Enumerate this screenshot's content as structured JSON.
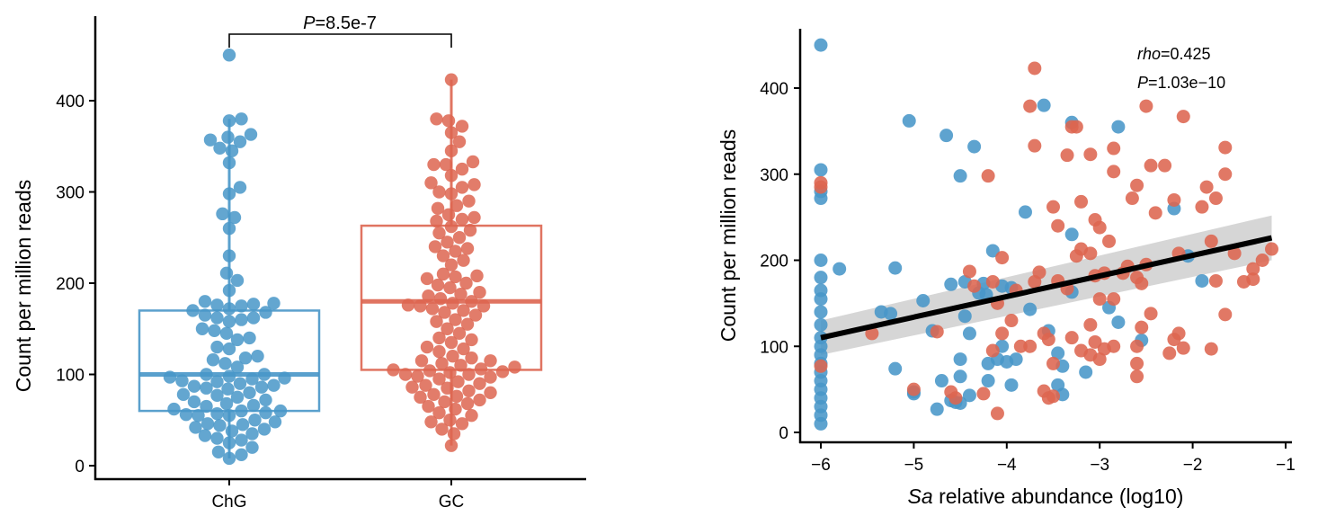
{
  "colors": {
    "ChG": "#4896c8",
    "GC": "#dd6550",
    "fit_line": "#000000",
    "ci_band": "#c8c8c8"
  },
  "chart_data": [
    {
      "type": "box-swarm",
      "ylabel": "Count per million reads",
      "xlabel": "",
      "ylim": [
        0,
        460
      ],
      "yticks": [
        0,
        100,
        200,
        300,
        400
      ],
      "categories": [
        "ChG",
        "GC"
      ],
      "comparison": {
        "p_label": "P",
        "p_value": "=8.5e-7"
      },
      "boxes": [
        {
          "name": "ChG",
          "q1": 60,
          "median": 100,
          "q3": 170,
          "whisker_low": 8,
          "whisker_high": 380
        },
        {
          "name": "GC",
          "q1": 105,
          "median": 180,
          "q3": 263,
          "whisker_low": 22,
          "whisker_high": 423
        }
      ],
      "series": [
        {
          "name": "ChG",
          "values": [
            450,
            380,
            378,
            363,
            360,
            357,
            355,
            348,
            345,
            332,
            305,
            298,
            276,
            272,
            260,
            230,
            211,
            203,
            192,
            180,
            178,
            177,
            176,
            175,
            172,
            170,
            168,
            165,
            162,
            162,
            160,
            158,
            150,
            148,
            145,
            140,
            138,
            130,
            128,
            120,
            118,
            116,
            112,
            108,
            100,
            100,
            98,
            97,
            96,
            95,
            93,
            92,
            90,
            88,
            87,
            86,
            85,
            84,
            80,
            78,
            77,
            75,
            72,
            70,
            68,
            66,
            65,
            62,
            60,
            60,
            58,
            57,
            56,
            55,
            55,
            50,
            48,
            46,
            45,
            44,
            42,
            40,
            38,
            35,
            33,
            30,
            28,
            25,
            20,
            15,
            12,
            8
          ]
        },
        {
          "name": "GC",
          "values": [
            423,
            380,
            378,
            372,
            365,
            355,
            345,
            333,
            330,
            330,
            325,
            318,
            310,
            308,
            305,
            300,
            298,
            290,
            285,
            282,
            275,
            272,
            270,
            268,
            262,
            258,
            255,
            250,
            245,
            240,
            238,
            235,
            230,
            225,
            220,
            210,
            208,
            207,
            205,
            200,
            198,
            195,
            190,
            188,
            186,
            183,
            180,
            178,
            176,
            175,
            175,
            172,
            170,
            168,
            165,
            160,
            158,
            155,
            150,
            145,
            140,
            138,
            135,
            130,
            128,
            125,
            120,
            118,
            115,
            115,
            112,
            110,
            108,
            106,
            105,
            104,
            103,
            102,
            100,
            100,
            98,
            97,
            95,
            92,
            90,
            88,
            86,
            85,
            82,
            80,
            78,
            76,
            75,
            72,
            70,
            68,
            65,
            62,
            58,
            55,
            50,
            48,
            46,
            40,
            35,
            22
          ]
        }
      ]
    },
    {
      "type": "scatter",
      "xlabel_italic": "Sa",
      "xlabel": " relative abundance (log10)",
      "ylabel": "Count per million reads",
      "xlim": [
        -6.2,
        -0.95
      ],
      "ylim": [
        -10,
        460
      ],
      "xticks": [
        -6,
        -5,
        -4,
        -3,
        -2,
        -1
      ],
      "xtick_labels": [
        "−6",
        "−5",
        "−4",
        "−3",
        "−2",
        "−1"
      ],
      "yticks": [
        0,
        100,
        200,
        300,
        400
      ],
      "annotation": {
        "rho_label": "rho",
        "rho_value": "=0.425",
        "p_label": "P",
        "p_value": "=1.03e−10"
      },
      "fit": {
        "x": [
          -6,
          -1.15
        ],
        "y": [
          110,
          226
        ],
        "ci_low": [
          90,
          200
        ],
        "ci_high": [
          130,
          252
        ]
      },
      "series": [
        {
          "name": "ChG",
          "points": [
            [
              -6,
              450
            ],
            [
              -6,
              305
            ],
            [
              -6,
              280
            ],
            [
              -6,
              272
            ],
            [
              -6,
              200
            ],
            [
              -6,
              180
            ],
            [
              -6,
              165
            ],
            [
              -6,
              155
            ],
            [
              -6,
              140
            ],
            [
              -6,
              125
            ],
            [
              -6,
              110
            ],
            [
              -6,
              100
            ],
            [
              -6,
              90
            ],
            [
              -6,
              80
            ],
            [
              -6,
              70
            ],
            [
              -6,
              60
            ],
            [
              -6,
              50
            ],
            [
              -6,
              40
            ],
            [
              -6,
              30
            ],
            [
              -6,
              20
            ],
            [
              -6,
              10
            ],
            [
              -5.05,
              362
            ],
            [
              -4.65,
              345
            ],
            [
              -4.35,
              332
            ],
            [
              -4.5,
              298
            ],
            [
              -3.8,
              256
            ],
            [
              -3.6,
              380
            ],
            [
              -3.3,
              360
            ],
            [
              -2.8,
              355
            ],
            [
              -2.2,
              260
            ],
            [
              -5.8,
              190
            ],
            [
              -5.2,
              191
            ],
            [
              -4.15,
              211
            ],
            [
              -4.05,
              170
            ],
            [
              -3.95,
              168
            ],
            [
              -4.45,
              175
            ],
            [
              -4.6,
              172
            ],
            [
              -4.9,
              153
            ],
            [
              -5.35,
              140
            ],
            [
              -5.25,
              138
            ],
            [
              -4.45,
              135
            ],
            [
              -4.3,
              162
            ],
            [
              -4.22,
              160
            ],
            [
              -3.75,
              143
            ],
            [
              -3.3,
              230
            ],
            [
              -3.3,
              163
            ],
            [
              -2.9,
              145
            ],
            [
              -2.8,
              128
            ],
            [
              -2.55,
              107
            ],
            [
              -3.55,
              118
            ],
            [
              -3.45,
              92
            ],
            [
              -3.4,
              77
            ],
            [
              -3.15,
              70
            ],
            [
              -3.45,
              55
            ],
            [
              -3.4,
              44
            ],
            [
              -3.95,
              55
            ],
            [
              -4.05,
              100
            ],
            [
              -4.1,
              85
            ],
            [
              -4.2,
              80
            ],
            [
              -4.0,
              82
            ],
            [
              -3.9,
              85
            ],
            [
              -4.5,
              85
            ],
            [
              -4.5,
              65
            ],
            [
              -4.7,
              60
            ],
            [
              -4.4,
              43
            ],
            [
              -4.6,
              37
            ],
            [
              -4.55,
              35
            ],
            [
              -4.5,
              34
            ],
            [
              -4.75,
              27
            ],
            [
              -5.2,
              74
            ],
            [
              -5.0,
              45
            ],
            [
              -5.0,
              47
            ],
            [
              -4.2,
              60
            ],
            [
              -4.4,
              115
            ],
            [
              -1.9,
              176
            ],
            [
              -2.05,
              205
            ],
            [
              -4.25,
              173
            ],
            [
              -4.8,
              118
            ]
          ]
        },
        {
          "name": "GC",
          "points": [
            [
              -3.7,
              423
            ],
            [
              -3.75,
              379
            ],
            [
              -3.7,
              333
            ],
            [
              -4.2,
              298
            ],
            [
              -4.05,
              203
            ],
            [
              -4.4,
              187
            ],
            [
              -2.5,
              379
            ],
            [
              -2.1,
              367
            ],
            [
              -3.3,
              355
            ],
            [
              -3.25,
              355
            ],
            [
              -3.35,
              322
            ],
            [
              -3.1,
              323
            ],
            [
              -2.85,
              330
            ],
            [
              -2.85,
              303
            ],
            [
              -1.65,
              331
            ],
            [
              -1.65,
              300
            ],
            [
              -1.85,
              285
            ],
            [
              -1.75,
              272
            ],
            [
              -2.45,
              310
            ],
            [
              -2.3,
              310
            ],
            [
              -2.2,
              270
            ],
            [
              -2.4,
              255
            ],
            [
              -2.6,
              287
            ],
            [
              -2.65,
              272
            ],
            [
              -3.2,
              268
            ],
            [
              -3.05,
              247
            ],
            [
              -3.0,
              238
            ],
            [
              -2.9,
              222
            ],
            [
              -3.5,
              262
            ],
            [
              -3.45,
              240
            ],
            [
              -3.1,
              208
            ],
            [
              -3.25,
              205
            ],
            [
              -3.2,
              213
            ],
            [
              -2.7,
              193
            ],
            [
              -2.75,
              185
            ],
            [
              -2.5,
              195
            ],
            [
              -2.6,
              180
            ],
            [
              -2.55,
              173
            ],
            [
              -2.95,
              185
            ],
            [
              -3.05,
              182
            ],
            [
              -3.65,
              186
            ],
            [
              -3.7,
              175
            ],
            [
              -3.45,
              176
            ],
            [
              -3.35,
              167
            ],
            [
              -3.9,
              165
            ],
            [
              -4.35,
              170
            ],
            [
              -3.6,
              115
            ],
            [
              -3.75,
              100
            ],
            [
              -3.55,
              108
            ],
            [
              -3.3,
              110
            ],
            [
              -3.1,
              125
            ],
            [
              -3.05,
              105
            ],
            [
              -3.1,
              90
            ],
            [
              -3.0,
              85
            ],
            [
              -2.85,
              100
            ],
            [
              -2.95,
              97
            ],
            [
              -2.6,
              100
            ],
            [
              -2.55,
              122
            ],
            [
              -2.45,
              138
            ],
            [
              -2.2,
              108
            ],
            [
              -2.15,
              115
            ],
            [
              -2.1,
              98
            ],
            [
              -2.25,
              92
            ],
            [
              -1.8,
              97
            ],
            [
              -1.65,
              137
            ],
            [
              -2.6,
              80
            ],
            [
              -2.6,
              65
            ],
            [
              -1.8,
              222
            ],
            [
              -1.55,
              208
            ],
            [
              -1.15,
              213
            ],
            [
              -1.25,
              200
            ],
            [
              -1.35,
              190
            ],
            [
              -1.45,
              175
            ],
            [
              -1.35,
              178
            ],
            [
              -1.9,
              262
            ],
            [
              -2.15,
              208
            ],
            [
              -1.75,
              176
            ],
            [
              -3.0,
              155
            ],
            [
              -2.85,
              155
            ],
            [
              -3.2,
              95
            ],
            [
              -3.5,
              80
            ],
            [
              -3.6,
              48
            ],
            [
              -3.55,
              40
            ],
            [
              -3.5,
              42
            ],
            [
              -3.85,
              100
            ],
            [
              -3.95,
              130
            ],
            [
              -4.05,
              115
            ],
            [
              -4.15,
              95
            ],
            [
              -4.25,
              45
            ],
            [
              -4.1,
              22
            ],
            [
              -4.1,
              150
            ],
            [
              -4.6,
              47
            ],
            [
              -4.75,
              117
            ],
            [
              -5.0,
              50
            ],
            [
              -5.45,
              115
            ],
            [
              -6,
              290
            ],
            [
              -6,
              285
            ],
            [
              -6,
              77
            ],
            [
              -4.55,
              40
            ],
            [
              -4.15,
              175
            ]
          ]
        }
      ]
    }
  ]
}
